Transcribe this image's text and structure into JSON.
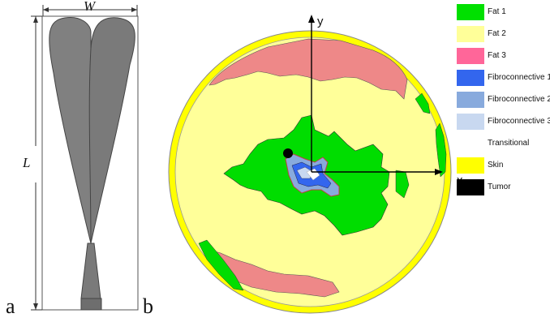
{
  "figure": {
    "panel_a_label": "a",
    "panel_b_label": "b"
  },
  "panel_a": {
    "width_label": "W",
    "length_label": "L"
  },
  "panel_b": {
    "x_axis_label": "x",
    "y_axis_label": "y",
    "colors": {
      "skin": "#ffff00",
      "fat1": "#00dd00",
      "fat2": "#ffff99",
      "fat3": "#ee8888",
      "fibro1": "#3366ee",
      "fibro2": "#88aadd",
      "fibro3": "#c8d8f0",
      "tumor": "#000000"
    }
  },
  "legend": {
    "items": [
      {
        "label": "Fat 1",
        "color": "#00e000"
      },
      {
        "label": "Fat 2",
        "color": "#ffff99"
      },
      {
        "label": "Fat 3",
        "color": "#ff6699"
      },
      {
        "label": "Fibroconnective 1",
        "color": "#3366ee"
      },
      {
        "label": "Fibroconnective 2",
        "color": "#88aadd"
      },
      {
        "label": "Fibroconnective 3",
        "color": "#c8d8f0"
      },
      {
        "label": "Transitional",
        "color": "#ffffff"
      },
      {
        "label": "Skin",
        "color": "#ffff00"
      },
      {
        "label": "Tumor",
        "color": "#000000"
      }
    ]
  }
}
